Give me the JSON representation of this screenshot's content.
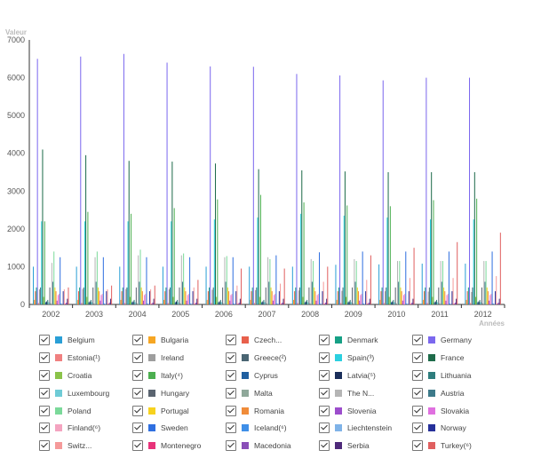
{
  "chart_data": {
    "type": "bar",
    "ylabel": "Valeur",
    "xlabel": "Années",
    "ylim": [
      0,
      7000
    ],
    "yticks": [
      "0",
      "1000",
      "2000",
      "3000",
      "4000",
      "5000",
      "6000",
      "7000"
    ],
    "categories": [
      "2002",
      "2003",
      "2004",
      "2005",
      "2006",
      "2007",
      "2008",
      "2009",
      "2010",
      "2011",
      "2012"
    ],
    "legend": "bottom",
    "series": [
      {
        "name": "Belgium",
        "color": "#2a9fd6",
        "checked": true,
        "values": [
          1000,
          1000,
          1000,
          1000,
          1000,
          1000,
          1000,
          1050,
          1060,
          1080,
          1080
        ]
      },
      {
        "name": "Bulgaria",
        "color": "#f6a623",
        "checked": true,
        "values": [
          120,
          120,
          120,
          120,
          120,
          120,
          120,
          120,
          120,
          120,
          120
        ]
      },
      {
        "name": "Czech...",
        "color": "#e8604c",
        "checked": true,
        "values": [
          350,
          350,
          350,
          350,
          350,
          350,
          350,
          350,
          350,
          350,
          350
        ]
      },
      {
        "name": "Denmark",
        "color": "#16a085",
        "checked": true,
        "values": [
          450,
          450,
          450,
          450,
          450,
          450,
          450,
          450,
          450,
          450,
          450
        ]
      },
      {
        "name": "Germany",
        "color": "#7b68ee",
        "checked": true,
        "values": [
          6500,
          6560,
          6630,
          6400,
          6300,
          6290,
          6100,
          6060,
          5930,
          6000,
          6000
        ]
      },
      {
        "name": "Estonia(¹)",
        "color": "#f08080",
        "checked": true,
        "values": [
          40,
          40,
          40,
          40,
          40,
          40,
          40,
          40,
          40,
          40,
          40
        ]
      },
      {
        "name": "Ireland",
        "color": "#9e9e9e",
        "checked": true,
        "values": [
          400,
          410,
          410,
          400,
          390,
          380,
          370,
          360,
          350,
          340,
          330
        ]
      },
      {
        "name": "Greece(²)",
        "color": "#4a6572",
        "checked": true,
        "values": [
          450,
          450,
          450,
          450,
          450,
          450,
          450,
          450,
          450,
          450,
          450
        ]
      },
      {
        "name": "Spain(³)",
        "color": "#2bd0e0",
        "checked": true,
        "values": [
          2200,
          2200,
          2200,
          2200,
          2250,
          2300,
          2400,
          2350,
          2300,
          2250,
          2250
        ]
      },
      {
        "name": "France",
        "color": "#1e6b4a",
        "checked": true,
        "values": [
          4100,
          3950,
          3800,
          3780,
          3730,
          3580,
          3550,
          3520,
          3500,
          3500,
          3500
        ]
      },
      {
        "name": "Croatia",
        "color": "#8bc34a",
        "checked": true,
        "values": [
          200,
          200,
          200,
          200,
          200,
          200,
          200,
          200,
          200,
          200,
          200
        ]
      },
      {
        "name": "Italy(⁴)",
        "color": "#4caf50",
        "checked": true,
        "values": [
          2200,
          2450,
          2400,
          2550,
          2780,
          2900,
          2700,
          2620,
          2600,
          2760,
          2800
        ]
      },
      {
        "name": "Cyprus",
        "color": "#1f5fa0",
        "checked": true,
        "values": [
          60,
          60,
          60,
          60,
          60,
          60,
          60,
          60,
          60,
          60,
          60
        ]
      },
      {
        "name": "Latvia(⁵)",
        "color": "#1a2e5a",
        "checked": true,
        "values": [
          80,
          80,
          80,
          80,
          80,
          80,
          80,
          80,
          80,
          80,
          80
        ]
      },
      {
        "name": "Lithuania",
        "color": "#2e7d7d",
        "checked": true,
        "values": [
          120,
          120,
          120,
          120,
          120,
          120,
          120,
          120,
          120,
          120,
          120
        ]
      },
      {
        "name": "Luxembourg",
        "color": "#6fcbd6",
        "checked": true,
        "values": [
          60,
          60,
          60,
          60,
          60,
          60,
          60,
          60,
          60,
          60,
          60
        ]
      },
      {
        "name": "Hungary",
        "color": "#5a6470",
        "checked": true,
        "values": [
          450,
          450,
          450,
          450,
          450,
          450,
          450,
          450,
          450,
          450,
          450
        ]
      },
      {
        "name": "Malta",
        "color": "#8fa89a",
        "checked": true,
        "values": [
          30,
          30,
          30,
          30,
          30,
          30,
          30,
          30,
          30,
          30,
          30
        ]
      },
      {
        "name": "The N...",
        "color": "#b5b5b5",
        "checked": true,
        "values": [
          1100,
          1250,
          1300,
          1300,
          1250,
          1250,
          1200,
          1200,
          1150,
          1150,
          1150
        ]
      },
      {
        "name": "Austria",
        "color": "#3d7a8a",
        "checked": true,
        "values": [
          600,
          600,
          600,
          600,
          600,
          600,
          600,
          600,
          600,
          600,
          600
        ]
      },
      {
        "name": "Poland",
        "color": "#7bd99a",
        "checked": true,
        "values": [
          1400,
          1400,
          1450,
          1350,
          1280,
          1200,
          1150,
          1150,
          1150,
          1150,
          1150
        ]
      },
      {
        "name": "Portugal",
        "color": "#f7d21e",
        "checked": true,
        "values": [
          450,
          450,
          450,
          450,
          450,
          450,
          450,
          450,
          450,
          450,
          450
        ]
      },
      {
        "name": "Romania",
        "color": "#f08c3a",
        "checked": true,
        "values": [
          350,
          350,
          350,
          350,
          350,
          350,
          350,
          350,
          350,
          350,
          350
        ]
      },
      {
        "name": "Slovenia",
        "color": "#9c4dcc",
        "checked": true,
        "values": [
          100,
          100,
          100,
          100,
          100,
          100,
          100,
          100,
          100,
          100,
          100
        ]
      },
      {
        "name": "Slovakia",
        "color": "#e070e0",
        "checked": true,
        "values": [
          250,
          250,
          250,
          250,
          250,
          250,
          250,
          250,
          250,
          250,
          250
        ]
      },
      {
        "name": "Finland(⁶)",
        "color": "#f4a4c0",
        "checked": true,
        "values": [
          280,
          280,
          280,
          280,
          280,
          280,
          280,
          280,
          280,
          280,
          280
        ]
      },
      {
        "name": "Sweden",
        "color": "#2f6fe0",
        "checked": true,
        "values": [
          1250,
          1250,
          1250,
          1250,
          1250,
          1300,
          1380,
          1400,
          1400,
          1400,
          1400
        ]
      },
      {
        "name": "Iceland(⁶)",
        "color": "#3f8fe8",
        "checked": true,
        "values": [
          25,
          25,
          25,
          25,
          25,
          25,
          25,
          25,
          25,
          25,
          25
        ]
      },
      {
        "name": "Liechtenstein",
        "color": "#7fb3e8",
        "checked": true,
        "values": [
          10,
          10,
          10,
          10,
          10,
          10,
          10,
          10,
          10,
          10,
          10
        ]
      },
      {
        "name": "Norway",
        "color": "#26309a",
        "checked": true,
        "values": [
          350,
          350,
          350,
          350,
          350,
          350,
          350,
          350,
          350,
          350,
          350
        ]
      },
      {
        "name": "Switz...",
        "color": "#f59a9a",
        "checked": true,
        "values": [
          400,
          400,
          400,
          450,
          500,
          550,
          600,
          650,
          700,
          700,
          750
        ]
      },
      {
        "name": "Montenegro",
        "color": "#e8337a",
        "checked": true,
        "values": [
          20,
          20,
          20,
          20,
          20,
          20,
          20,
          20,
          20,
          20,
          20
        ]
      },
      {
        "name": "Macedonia",
        "color": "#8a4fb8",
        "checked": true,
        "values": [
          50,
          50,
          50,
          50,
          50,
          50,
          50,
          50,
          50,
          50,
          50
        ]
      },
      {
        "name": "Serbia",
        "color": "#4e2a7a",
        "checked": true,
        "values": [
          150,
          150,
          150,
          150,
          150,
          150,
          150,
          150,
          150,
          150,
          150
        ]
      },
      {
        "name": "Turkey(⁶)",
        "color": "#e06060",
        "checked": true,
        "values": [
          450,
          500,
          500,
          650,
          950,
          950,
          1000,
          1300,
          1500,
          1650,
          1900
        ]
      }
    ]
  }
}
